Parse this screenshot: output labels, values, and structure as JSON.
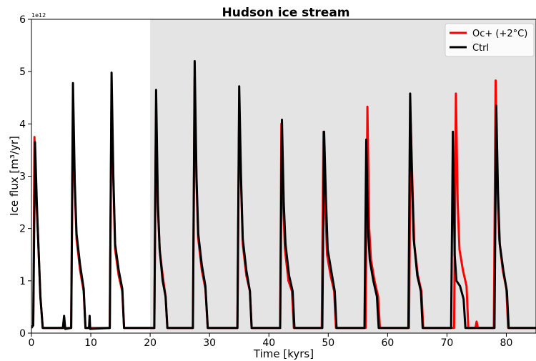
{
  "chart_data": {
    "type": "line",
    "title": "Hudson ice stream",
    "xlabel": "Time [kyrs]",
    "ylabel": "Ice flux [m³/yr]",
    "offset_label": "1e12",
    "xlim": [
      0,
      85
    ],
    "ylim": [
      0,
      6
    ],
    "xticks": [
      0,
      10,
      20,
      30,
      40,
      50,
      60,
      70,
      80
    ],
    "yticks": [
      0,
      1,
      2,
      3,
      4,
      5,
      6
    ],
    "shade_xlim": [
      20,
      85
    ],
    "shade_color": "#e4e4e4",
    "legend": "upper right",
    "series": [
      {
        "name": "Oc+ (+2°C)",
        "color": "#ff0000",
        "x": [
          0,
          0.3,
          0.5,
          0.8,
          1.1,
          1.5,
          1.9,
          6.7,
          7.0,
          7.3,
          7.6,
          8.2,
          8.8,
          9.1,
          13.2,
          13.5,
          13.8,
          14.1,
          14.7,
          15.3,
          15.6,
          20.7,
          21.0,
          21.3,
          21.6,
          22.1,
          22.6,
          22.9,
          27.2,
          27.5,
          27.8,
          28.1,
          28.7,
          29.3,
          29.7,
          34.7,
          35.0,
          35.3,
          35.6,
          36.2,
          36.8,
          37.1,
          41.9,
          42.1,
          42.4,
          42.7,
          43.3,
          43.9,
          44.2,
          48.9,
          49.2,
          49.5,
          49.8,
          50.4,
          51.0,
          51.3,
          56.3,
          56.6,
          56.9,
          57.2,
          57.8,
          58.4,
          58.7,
          63.6,
          63.9,
          64.2,
          64.5,
          65.1,
          65.7,
          66.0,
          71.2,
          71.5,
          71.8,
          72.1,
          72.7,
          73.3,
          73.6,
          74.8,
          75.0,
          75.2,
          77.9,
          78.2,
          78.5,
          78.8,
          79.4,
          80.0,
          80.3,
          85
        ],
        "values": [
          0.1,
          0.15,
          3.75,
          2.6,
          1.9,
          0.7,
          0.1,
          0.1,
          4.2,
          2.8,
          1.8,
          1.2,
          0.8,
          0.1,
          0.1,
          4.5,
          2.9,
          1.6,
          1.1,
          0.8,
          0.1,
          0.1,
          4.3,
          2.4,
          1.6,
          1.1,
          0.7,
          0.1,
          0.1,
          4.9,
          2.9,
          1.8,
          1.2,
          0.85,
          0.1,
          0.1,
          4.4,
          2.9,
          1.7,
          1.1,
          0.8,
          0.1,
          0.1,
          4.0,
          2.5,
          1.6,
          1.0,
          0.8,
          0.1,
          0.1,
          3.85,
          2.5,
          1.5,
          1.1,
          0.8,
          0.1,
          0.1,
          4.33,
          2.0,
          1.4,
          1.0,
          0.7,
          0.1,
          0.1,
          4.0,
          2.8,
          1.7,
          1.1,
          0.8,
          0.1,
          0.1,
          4.58,
          2.5,
          1.6,
          1.2,
          0.9,
          0.1,
          0.1,
          0.22,
          0.1,
          0.1,
          4.83,
          2.9,
          1.8,
          1.2,
          0.85,
          0.1,
          0.1
        ]
      },
      {
        "name": "Ctrl",
        "color": "#000000",
        "x": [
          0,
          0.3,
          0.6,
          0.9,
          1.1,
          1.5,
          1.9,
          5.3,
          5.5,
          5.7,
          6.7,
          7.0,
          7.3,
          7.6,
          8.2,
          8.8,
          9.1,
          9.7,
          9.8,
          9.9,
          13.2,
          13.5,
          13.8,
          14.1,
          14.7,
          15.3,
          15.6,
          20.7,
          21.0,
          21.3,
          21.6,
          22.1,
          22.6,
          22.9,
          27.2,
          27.5,
          27.8,
          28.1,
          28.7,
          29.3,
          29.7,
          34.7,
          35.0,
          35.3,
          35.6,
          36.2,
          36.8,
          37.1,
          41.9,
          42.2,
          42.5,
          42.8,
          43.4,
          44.0,
          44.3,
          49.0,
          49.3,
          49.6,
          49.9,
          50.5,
          51.1,
          51.4,
          56.1,
          56.4,
          56.7,
          57.0,
          57.6,
          58.2,
          58.5,
          63.5,
          63.8,
          64.1,
          64.4,
          65.0,
          65.6,
          65.9,
          70.7,
          71.0,
          71.3,
          71.6,
          72.2,
          72.8,
          73.1,
          78.0,
          78.3,
          78.6,
          78.9,
          79.5,
          80.1,
          80.4,
          85
        ],
        "values": [
          0.1,
          0.15,
          3.65,
          2.5,
          1.9,
          0.7,
          0.1,
          0.1,
          0.33,
          0.08,
          0.1,
          4.78,
          2.9,
          1.9,
          1.3,
          0.85,
          0.1,
          0.1,
          0.33,
          0.08,
          0.1,
          4.98,
          3.0,
          1.7,
          1.2,
          0.85,
          0.1,
          0.1,
          4.65,
          2.5,
          1.6,
          1.0,
          0.7,
          0.1,
          0.1,
          5.2,
          3.0,
          1.9,
          1.3,
          0.9,
          0.1,
          0.1,
          4.72,
          3.0,
          1.8,
          1.2,
          0.8,
          0.1,
          0.1,
          4.08,
          2.5,
          1.7,
          1.1,
          0.8,
          0.1,
          0.1,
          3.85,
          2.6,
          1.6,
          1.2,
          0.8,
          0.1,
          0.1,
          3.7,
          2.0,
          1.4,
          1.0,
          0.7,
          0.1,
          0.1,
          4.58,
          3.0,
          1.8,
          1.1,
          0.8,
          0.1,
          0.1,
          3.85,
          1.5,
          1.0,
          0.9,
          0.65,
          0.1,
          0.1,
          4.35,
          2.7,
          1.7,
          1.2,
          0.8,
          0.1,
          0.1
        ]
      }
    ]
  }
}
